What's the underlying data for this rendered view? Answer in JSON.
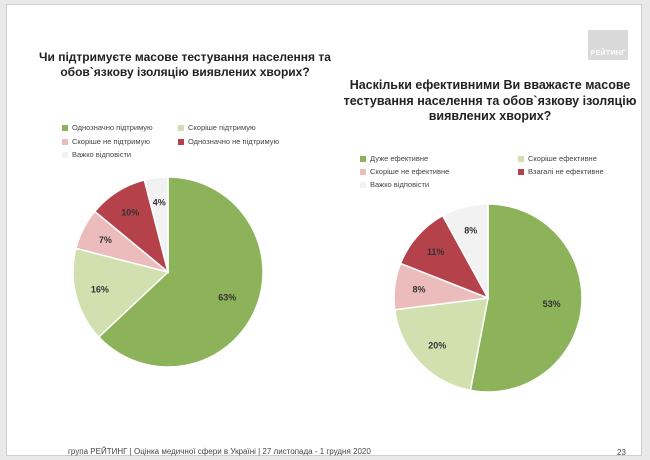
{
  "logo_text": "РЕЙТИНГ",
  "footer": "група РЕЙТИНГ  |  Оцінка медичної сфери в Україні  |  27 листопада - 1 грудня 2020",
  "page_number": "23",
  "colors": {
    "c1": "#8db35a",
    "c2": "#d2e0b0",
    "c3": "#ecbcbc",
    "c4": "#b5424a",
    "c5": "#f2f2f2"
  },
  "chart_data": [
    {
      "type": "pie",
      "title": "Чи підтримуєте масове тестування населення та обов`язкову ізоляцію виявлених хворих?",
      "legend": [
        "Однозначно підтримую",
        "Скоріше підтримую",
        "Скоріше не підтримую",
        "Однозначно не підтримую",
        "Важко відповісти"
      ],
      "slices": [
        {
          "label": "Однозначно підтримую",
          "value": 63
        },
        {
          "label": "Скоріше підтримую",
          "value": 16
        },
        {
          "label": "Скоріше не підтримую",
          "value": 7
        },
        {
          "label": "Однозначно не підтримую",
          "value": 10
        },
        {
          "label": "Важко відповісти",
          "value": 4
        }
      ],
      "data_labels": [
        "63%",
        "16%",
        "7%",
        "10%",
        "4%"
      ],
      "legend_position": "top"
    },
    {
      "type": "pie",
      "title": "Наскільки ефективними Ви вважаєте масове тестування населення та обов`язкову ізоляцію виявлених хворих?",
      "legend": [
        "Дуже ефективне",
        "Скоріше ефективне",
        "Скоріше не ефективне",
        "Взагалі не ефективне",
        "Важко відповісти"
      ],
      "slices": [
        {
          "label": "Дуже ефективне",
          "value": 53
        },
        {
          "label": "Скоріше ефективне",
          "value": 20
        },
        {
          "label": "Скоріше не ефективне",
          "value": 8
        },
        {
          "label": "Взагалі не ефективне",
          "value": 11
        },
        {
          "label": "Важко відповісти",
          "value": 8
        }
      ],
      "data_labels": [
        "53%",
        "20%",
        "8%",
        "11%",
        "8%"
      ],
      "legend_position": "top"
    }
  ]
}
